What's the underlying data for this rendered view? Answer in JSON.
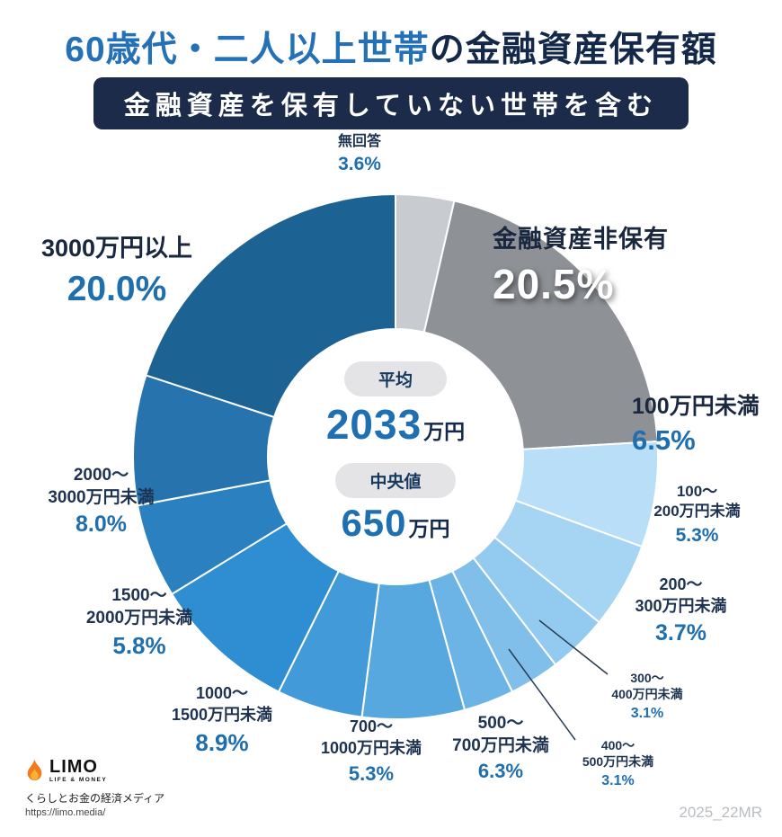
{
  "page": {
    "title_highlight": "60歳代・二人以上世帯",
    "title_rest": "の金融資産保有額",
    "subtitle": "金融資産を保有していない世帯を含む",
    "watermark": "2025_22MR"
  },
  "center": {
    "avg_label": "平均",
    "avg_value": "2033",
    "avg_unit": "万円",
    "median_label": "中央値",
    "median_value": "650",
    "median_unit": "万円"
  },
  "footer": {
    "logo_text": "LIMO",
    "logo_sub": "LIFE & MONEY",
    "tagline": "くらしとお金の経済メディア",
    "url": "https://limo.media/"
  },
  "callouts": {
    "no_answer": {
      "name": "無回答",
      "pct": "3.6%"
    },
    "no_assets": {
      "name": "金融資産非保有",
      "pct": "20.5%"
    },
    "under_100": {
      "name": "100万円未満",
      "pct": "6.5%"
    },
    "r100_200": {
      "line1": "100〜",
      "line2": "200万円未満",
      "pct": "5.3%"
    },
    "r200_300": {
      "line1": "200〜",
      "line2": "300万円未満",
      "pct": "3.7%"
    },
    "r300_400": {
      "line1": "300〜",
      "line2": "400万円未満",
      "pct": "3.1%"
    },
    "r400_500": {
      "line1": "400〜",
      "line2": "500万円未満",
      "pct": "3.1%"
    },
    "r500_700": {
      "line1": "500〜",
      "line2": "700万円未満",
      "pct": "6.3%"
    },
    "r700_1000": {
      "line1": "700〜",
      "line2": "1000万円未満",
      "pct": "5.3%"
    },
    "r1000_1500": {
      "line1": "1000〜",
      "line2": "1500万円未満",
      "pct": "8.9%"
    },
    "r1500_2000": {
      "line1": "1500〜",
      "line2": "2000万円未満",
      "pct": "5.8%"
    },
    "r2000_3000": {
      "line1": "2000〜",
      "line2": "3000万円未満",
      "pct": "8.0%"
    },
    "over_3000": {
      "name": "3000万円以上",
      "pct": "20.0%"
    }
  },
  "chart_data": {
    "type": "pie",
    "title": "60歳代・二人以上世帯の金融資産保有額（金融資産を保有していない世帯を含む）",
    "unit": "%",
    "donut": true,
    "start_angle_deg": 0,
    "direction": "clockwise",
    "segments": [
      {
        "label": "無回答",
        "value": 3.6,
        "color": "#c8ccd0"
      },
      {
        "label": "金融資産非保有",
        "value": 20.5,
        "color": "#8e9297"
      },
      {
        "label": "100万円未満",
        "value": 6.5,
        "color": "#b9def7"
      },
      {
        "label": "100〜200万円未満",
        "value": 5.3,
        "color": "#a6d4f3"
      },
      {
        "label": "200〜300万円未満",
        "value": 3.7,
        "color": "#93caef"
      },
      {
        "label": "300〜400万円未満",
        "value": 3.1,
        "color": "#80bfea"
      },
      {
        "label": "400〜500万円未満",
        "value": 3.1,
        "color": "#6db4e6"
      },
      {
        "label": "500〜700万円未満",
        "value": 6.3,
        "color": "#58a8e0"
      },
      {
        "label": "700〜1000万円未満",
        "value": 5.3,
        "color": "#439ad9"
      },
      {
        "label": "1000〜1500万円未満",
        "value": 8.9,
        "color": "#2f8dd1"
      },
      {
        "label": "1500〜2000万円未満",
        "value": 5.8,
        "color": "#2b80c0"
      },
      {
        "label": "2000〜3000万円未満",
        "value": 8.0,
        "color": "#2673ae"
      },
      {
        "label": "3000万円以上",
        "value": 20.0,
        "color": "#1c6292"
      }
    ],
    "center_stats": [
      {
        "label": "平均",
        "value": 2033,
        "unit": "万円"
      },
      {
        "label": "中央値",
        "value": 650,
        "unit": "万円"
      }
    ]
  }
}
